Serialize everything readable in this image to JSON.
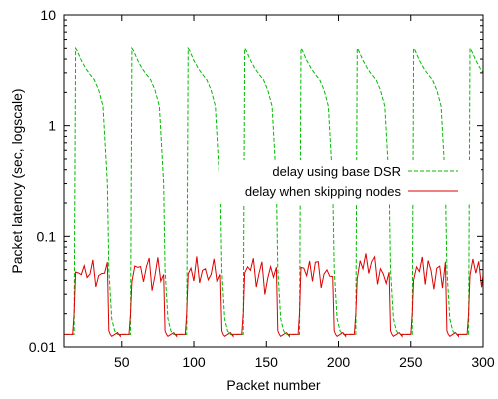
{
  "chart_data": {
    "type": "line",
    "title": "",
    "xlabel": "Packet number",
    "ylabel": "Packet latency (sec, logscale)",
    "xlim": [
      10,
      300
    ],
    "ylim": [
      0.01,
      10
    ],
    "yscale": "log",
    "x_ticks": [
      50,
      100,
      150,
      200,
      250,
      300
    ],
    "x_tick_labels": [
      "50",
      "100",
      "150",
      "200",
      "250",
      "300"
    ],
    "y_ticks": [
      0.01,
      0.1,
      1,
      10
    ],
    "y_tick_labels": [
      "0.01",
      "0.1",
      "1",
      "10"
    ],
    "grid": false,
    "legend_position": "center-right",
    "series": [
      {
        "name": "delay using base DSR",
        "color": "#00bb00",
        "style": "dashed",
        "period": 39,
        "x": [
          16,
          17,
          18,
          19,
          22,
          25,
          28,
          31,
          34,
          37,
          40,
          41,
          43,
          45,
          47,
          50,
          53
        ],
        "values": [
          0.013,
          0.013,
          5.0,
          4.8,
          3.9,
          3.3,
          2.9,
          2.6,
          2.1,
          1.5,
          0.3,
          0.05,
          0.018,
          0.014,
          0.013,
          0.013,
          0.013
        ]
      },
      {
        "name": "delay when skipping nodes",
        "color": "#dd0000",
        "style": "solid",
        "period": 39,
        "x": [
          10,
          14,
          16,
          17,
          18,
          20,
          22,
          24,
          26,
          28,
          30,
          32,
          34,
          36,
          38,
          40,
          41,
          42,
          43,
          45,
          47,
          49,
          51,
          53
        ],
        "values": [
          0.013,
          0.013,
          0.013,
          0.02,
          0.045,
          0.055,
          0.045,
          0.06,
          0.04,
          0.052,
          0.06,
          0.035,
          0.05,
          0.055,
          0.04,
          0.05,
          0.014,
          0.013,
          0.0125,
          0.013,
          0.0135,
          0.0125,
          0.013,
          0.013
        ]
      }
    ]
  }
}
